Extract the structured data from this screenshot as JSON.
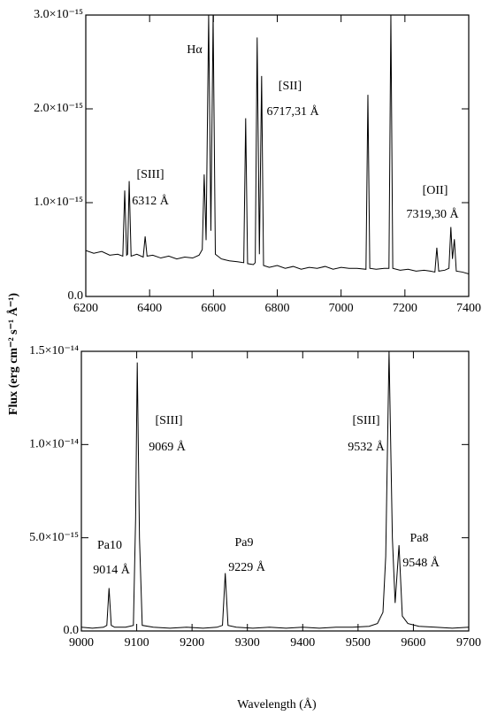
{
  "chart_data": [
    {
      "type": "line",
      "ylabel": "Flux (erg cm⁻² s⁻¹ Å⁻¹)",
      "series": [
        {
          "color": "#000000",
          "x": [
            6200,
            6225,
            6250,
            6275,
            6300,
            6316,
            6322,
            6328,
            6331,
            6336,
            6342,
            6360,
            6380,
            6386,
            6392,
            6410,
            6435,
            6460,
            6485,
            6510,
            6535,
            6555,
            6565,
            6571,
            6577,
            6585,
            6592,
            6599,
            6606,
            6625,
            6650,
            6675,
            6695,
            6701,
            6707,
            6725,
            6731,
            6737,
            6744,
            6751,
            6757,
            6775,
            6800,
            6825,
            6850,
            6875,
            6900,
            6925,
            6950,
            6975,
            7000,
            7025,
            7050,
            7078,
            7084,
            7090,
            7110,
            7135,
            7150,
            7156,
            7162,
            7185,
            7210,
            7235,
            7260,
            7280,
            7294,
            7300,
            7306,
            7325,
            7338,
            7344,
            7349,
            7355,
            7361,
            7380,
            7400
          ],
          "values": [
            4.9e-16,
            4.6e-16,
            4.8e-16,
            4.4e-16,
            4.5e-16,
            4.3e-16,
            1.13e-15,
            4.4e-16,
            4.5e-16,
            1.23e-15,
            4.3e-16,
            4.5e-16,
            4.2e-16,
            6.4e-16,
            4.3e-16,
            4.4e-16,
            4.1e-16,
            4.3e-16,
            4e-16,
            4.2e-16,
            4.1e-16,
            4.4e-16,
            5e-16,
            1.3e-15,
            6e-16,
            3e-15,
            7e-16,
            3e-15,
            4.5e-16,
            4e-16,
            3.8e-16,
            3.7e-16,
            3.6e-16,
            1.9e-15,
            3.5e-16,
            3.4e-16,
            3.6e-16,
            2.76e-15,
            4.5e-16,
            2.35e-15,
            3.3e-16,
            3.1e-16,
            3.3e-16,
            3e-16,
            3.2e-16,
            2.9e-16,
            3.1e-16,
            3e-16,
            3.2e-16,
            2.9e-16,
            3.1e-16,
            3e-16,
            3e-16,
            2.9e-16,
            2.15e-15,
            3e-16,
            2.9e-16,
            3e-16,
            3e-16,
            3e-15,
            3e-16,
            2.8e-16,
            2.9e-16,
            2.7e-16,
            2.8e-16,
            2.7e-16,
            2.6e-16,
            5.2e-16,
            2.7e-16,
            2.8e-16,
            3e-16,
            7.4e-16,
            4e-16,
            6.1e-16,
            2.7e-16,
            2.6e-16,
            2.4e-16
          ]
        }
      ],
      "xlim": [
        6200,
        7400
      ],
      "xticks": [
        6200,
        6400,
        6600,
        6800,
        7000,
        7200,
        7400
      ],
      "ylim": [
        0,
        3e-15
      ],
      "yticks": [
        {
          "value": 0,
          "label": "0.0"
        },
        {
          "value": 1e-15,
          "label": "1.0×10⁻¹⁵"
        },
        {
          "value": 2e-15,
          "label": "2.0×10⁻¹⁵"
        },
        {
          "value": 3e-15,
          "label": "3.0×10⁻¹⁵"
        }
      ],
      "annotations": [
        {
          "text": "Hα"
        },
        {
          "text": "[SIII]"
        },
        {
          "text": "6312 Å"
        },
        {
          "text": "[SII]"
        },
        {
          "text": "6717,31 Å"
        },
        {
          "text": "[OII]"
        },
        {
          "text": "7319,30 Å"
        }
      ]
    },
    {
      "type": "line",
      "xlabel": "Wavelength (Å)",
      "series": [
        {
          "color": "#000000",
          "x": [
            9000,
            9020,
            9040,
            9046,
            9050,
            9054,
            9060,
            9080,
            9094,
            9098,
            9101,
            9105,
            9110,
            9130,
            9160,
            9190,
            9220,
            9245,
            9255,
            9260,
            9265,
            9280,
            9310,
            9340,
            9370,
            9400,
            9430,
            9460,
            9490,
            9520,
            9535,
            9545,
            9550,
            9556,
            9562,
            9567,
            9574,
            9580,
            9590,
            9610,
            9640,
            9670,
            9700
          ],
          "values": [
            2e-16,
            1.5e-16,
            2e-16,
            3e-16,
            2.3e-15,
            3e-16,
            2e-16,
            2e-16,
            3e-16,
            6e-15,
            1.44e-14,
            5e-15,
            3e-16,
            2e-16,
            1.5e-16,
            2e-16,
            1.5e-16,
            2e-16,
            3e-16,
            3.1e-15,
            3e-16,
            2e-16,
            1.5e-16,
            2e-16,
            1.5e-16,
            2e-16,
            1.5e-16,
            2e-16,
            2e-16,
            2.5e-16,
            4e-16,
            1e-15,
            4e-15,
            1.5e-14,
            5e-15,
            1.5e-15,
            4.6e-15,
            8e-16,
            4e-16,
            2.5e-16,
            2e-16,
            1.5e-16,
            2e-16
          ]
        }
      ],
      "xlim": [
        9000,
        9700
      ],
      "xticks": [
        9000,
        9100,
        9200,
        9300,
        9400,
        9500,
        9600,
        9700
      ],
      "ylim": [
        0,
        1.5e-14
      ],
      "yticks": [
        {
          "value": 0,
          "label": "0.0"
        },
        {
          "value": 5e-15,
          "label": "5.0×10⁻¹⁵"
        },
        {
          "value": 1e-14,
          "label": "1.0×10⁻¹⁴"
        },
        {
          "value": 1.5e-14,
          "label": "1.5×10⁻¹⁴"
        }
      ],
      "annotations": [
        {
          "text": "[SIII]"
        },
        {
          "text": "9069 Å"
        },
        {
          "text": "Pa10"
        },
        {
          "text": "9014 Å"
        },
        {
          "text": "Pa9"
        },
        {
          "text": "9229 Å"
        },
        {
          "text": "[SIII]"
        },
        {
          "text": "9532 Å"
        },
        {
          "text": "Pa8"
        },
        {
          "text": "9548 Å"
        }
      ]
    }
  ]
}
